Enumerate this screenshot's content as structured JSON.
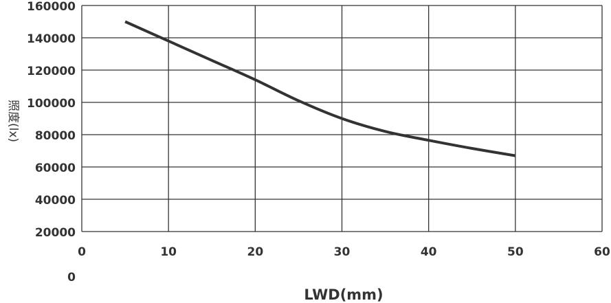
{
  "chart_data": {
    "type": "line",
    "title": "",
    "xlabel": "LWD(mm)",
    "ylabel": "照度(lx)",
    "x_ticks": [
      "0",
      "10",
      "20",
      "30",
      "40",
      "50",
      "60"
    ],
    "y_ticks": [
      "160000",
      "140000",
      "120000",
      "100000",
      "80000",
      "60000",
      "40000",
      "20000"
    ],
    "y_zero_label": "0",
    "xlim": [
      0,
      60
    ],
    "ylim": [
      20000,
      160000
    ],
    "grid": true,
    "series": [
      {
        "x": [
          5,
          10,
          15,
          20,
          25,
          30,
          35,
          40,
          45,
          50
        ],
        "y": [
          150000,
          138000,
          126000,
          114000,
          101000,
          90000,
          82000,
          76500,
          71500,
          67000
        ]
      }
    ]
  },
  "colors": {
    "line": "#333333",
    "grid": "#333333",
    "text": "#333333"
  }
}
